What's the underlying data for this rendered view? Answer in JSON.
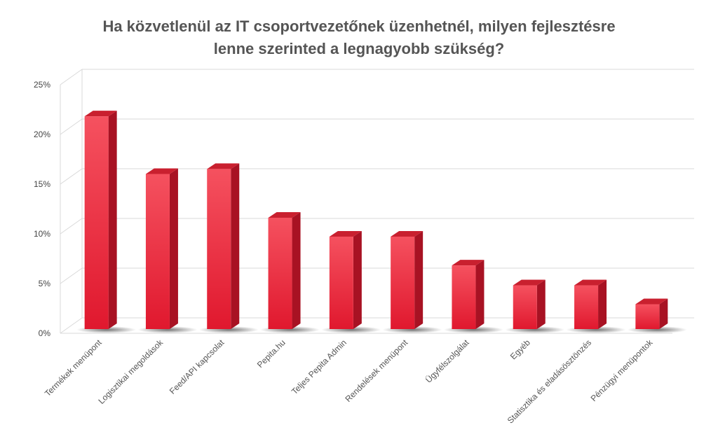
{
  "chart_data": {
    "type": "bar",
    "title_lines": [
      "Ha közvetlenül az IT csoportvezetőnek üzenhetnél, milyen fejlesztésre",
      "lenne szerinted a legnagyobb szükség?"
    ],
    "categories": [
      "Termékek menüpont",
      "Logisztikai megoldások",
      "Feed/API kapcsolat",
      "Pepita.hu",
      "Teljes Pepita Admin",
      "Rendelések menüpont",
      "Ügyfélszolgálat",
      "Egyéb",
      "Statisztika és eladásösztönzés",
      "Pénzügyi menüpontok"
    ],
    "values": [
      21.4,
      15.6,
      16.1,
      11.2,
      9.3,
      9.3,
      6.4,
      4.4,
      4.4,
      2.5
    ],
    "yticks": [
      "0%",
      "5%",
      "10%",
      "15%",
      "20%",
      "25%"
    ],
    "ylim": [
      0,
      25
    ],
    "grid": true,
    "legend": "none",
    "colors": {
      "bar_front_top": "#f5515f",
      "bar_front_bottom": "#e0182e",
      "bar_side": "#a81223",
      "bar_top": "#c9202f",
      "grid": "#d9d9d9",
      "title": "#555555"
    }
  }
}
